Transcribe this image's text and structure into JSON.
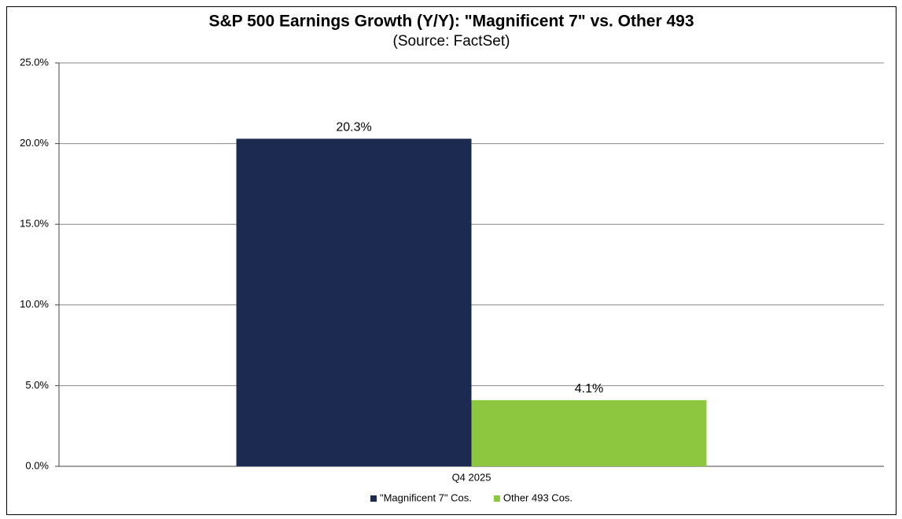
{
  "chart_data": {
    "type": "bar",
    "title": "S&P 500 Earnings Growth (Y/Y): \"Magnificent 7\" vs. Other 493",
    "subtitle": "(Source: FactSet)",
    "categories": [
      "Q4 2025"
    ],
    "series": [
      {
        "name": "\"Magnificent 7\" Cos.",
        "color": "#1c2951",
        "values": [
          20.3
        ],
        "value_labels": [
          "20.3%"
        ]
      },
      {
        "name": "Other 493 Cos.",
        "color": "#8dc63f",
        "values": [
          4.1
        ],
        "value_labels": [
          "4.1%"
        ]
      }
    ],
    "ylim": [
      0,
      25
    ],
    "yticks": [
      {
        "value": 0,
        "label": "0.0%"
      },
      {
        "value": 5,
        "label": "5.0%"
      },
      {
        "value": 10,
        "label": "10.0%"
      },
      {
        "value": 15,
        "label": "15.0%"
      },
      {
        "value": 20,
        "label": "20.0%"
      },
      {
        "value": 25,
        "label": "25.0%"
      }
    ],
    "grid": true,
    "legend": "bottom"
  }
}
